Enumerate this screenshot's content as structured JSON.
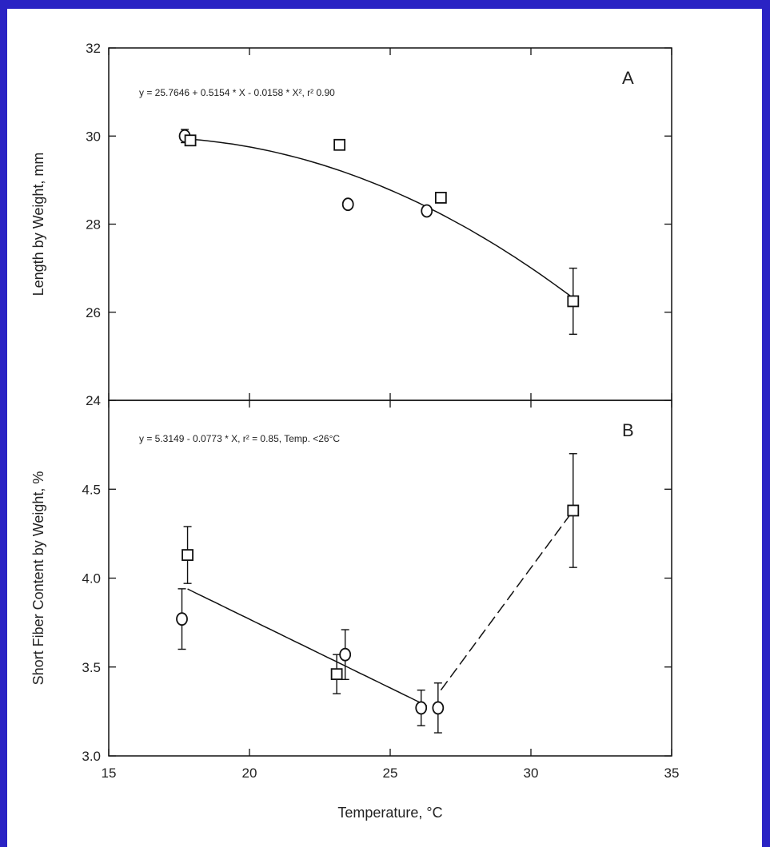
{
  "colors": {
    "border": "#2a23c4",
    "background": "#ffffff",
    "ink": "#111111"
  },
  "chart_data": [
    {
      "type": "scatter",
      "panel_label": "A",
      "equation": "y = 25.7646 + 0.5154 * X - 0.0158 * X², r² 0.90",
      "xlabel": "Temperature, °C",
      "ylabel": "Length by Weight, mm",
      "xlim": [
        15,
        35
      ],
      "ylim": [
        24,
        32
      ],
      "x_ticks": [
        15,
        20,
        25,
        30,
        35
      ],
      "y_ticks": [
        24,
        26,
        28,
        30,
        32
      ],
      "y_tick_labels": [
        "24",
        "26",
        "28",
        "30",
        "32"
      ],
      "grid": false,
      "series": [
        {
          "marker": "circle",
          "points": [
            {
              "x": 17.7,
              "y": 30.0,
              "err": 0.15
            },
            {
              "x": 23.5,
              "y": 28.45
            },
            {
              "x": 26.3,
              "y": 28.3
            }
          ]
        },
        {
          "marker": "square",
          "points": [
            {
              "x": 17.9,
              "y": 29.9
            },
            {
              "x": 23.2,
              "y": 29.8
            },
            {
              "x": 26.8,
              "y": 28.6
            },
            {
              "x": 31.5,
              "y": 26.25,
              "err": 0.75
            }
          ]
        }
      ],
      "fit": {
        "type": "quadratic",
        "coef": [
          25.7646,
          0.5154,
          -0.0158
        ],
        "x_from": 17.8,
        "x_to": 31.5
      }
    },
    {
      "type": "scatter",
      "panel_label": "B",
      "equation": "y = 5.3149 - 0.0773 * X, r² = 0.85, Temp. <26°C",
      "xlabel": "Temperature, °C",
      "ylabel": "Short Fiber Content by Weight, %",
      "xlim": [
        15,
        35
      ],
      "ylim": [
        3.0,
        5.0
      ],
      "x_ticks": [
        15,
        20,
        25,
        30,
        35
      ],
      "x_tick_labels": [
        "15",
        "20",
        "25",
        "30",
        "35"
      ],
      "y_ticks": [
        3.0,
        3.5,
        4.0,
        4.5
      ],
      "y_tick_labels": [
        "3.0",
        "3.5",
        "4.0",
        "4.5"
      ],
      "grid": false,
      "series": [
        {
          "marker": "circle",
          "points": [
            {
              "x": 17.6,
              "y": 3.77,
              "err": 0.17
            },
            {
              "x": 23.4,
              "y": 3.57,
              "err": 0.14
            },
            {
              "x": 26.1,
              "y": 3.27,
              "err": 0.1
            },
            {
              "x": 26.7,
              "y": 3.27,
              "err": 0.14
            }
          ]
        },
        {
          "marker": "square",
          "points": [
            {
              "x": 17.8,
              "y": 4.13,
              "err": 0.16
            },
            {
              "x": 23.1,
              "y": 3.46,
              "err": 0.11
            },
            {
              "x": 31.5,
              "y": 4.38,
              "err": 0.32
            }
          ]
        }
      ],
      "fit": {
        "type": "linear",
        "coef": [
          5.3149,
          -0.0773
        ],
        "x_from": 17.8,
        "x_to": 26.3
      },
      "trend_dashed": [
        {
          "x": 26.8,
          "y": 3.37
        },
        {
          "x": 31.5,
          "y": 4.38
        }
      ]
    }
  ]
}
